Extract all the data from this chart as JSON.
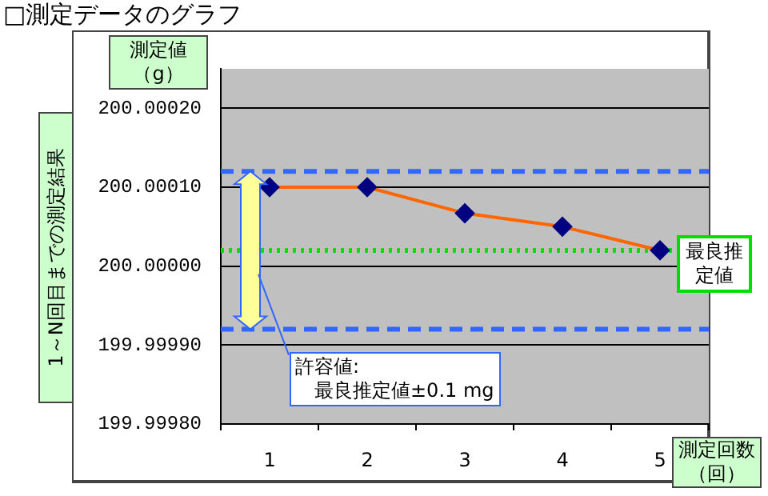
{
  "chart_data": {
    "type": "line",
    "title": "□測定データのグラフ",
    "ylabel": "1～N回目までの測定結果",
    "xlabel": "測定回数（回）",
    "categories": [
      "1",
      "2",
      "3",
      "4",
      "5"
    ],
    "series": [
      {
        "color": "#ff6600",
        "colors": [
          "#000080",
          "#000080",
          "#000080",
          "#000080",
          "#000080"
        ],
        "values": [
          200.0001,
          200.0001,
          200.000067,
          200.00005,
          200.00002
        ]
      }
    ],
    "ylim": [
      199.9998,
      200.00025
    ],
    "yticks": [
      {
        "value": 199.9998,
        "label": "199.99980"
      },
      {
        "value": 199.9999,
        "label": "199.99990"
      },
      {
        "value": 200.0,
        "label": "200.00000"
      },
      {
        "value": 200.0001,
        "label": "200.00010"
      },
      {
        "value": 200.0002,
        "label": "200.00020"
      }
    ],
    "ref_lines": [
      {
        "axis": "y",
        "value": 200.00012,
        "color": "#3366ff",
        "line_style": "dashed"
      },
      {
        "axis": "y",
        "value": 199.99992,
        "color": "#3366ff",
        "line_style": "dashed"
      },
      {
        "axis": "y",
        "value": 200.00002,
        "label": "最良推定値",
        "color": "#00dd00",
        "line_style": "dotted"
      }
    ],
    "annotations": [
      "測定値（g）",
      {
        "text": "許容値:\n　最良推定値±0.1 mg",
        "y": 199.99992
      }
    ],
    "grid": "y",
    "legend": false,
    "marker": "diamond",
    "line_style": "solid"
  }
}
